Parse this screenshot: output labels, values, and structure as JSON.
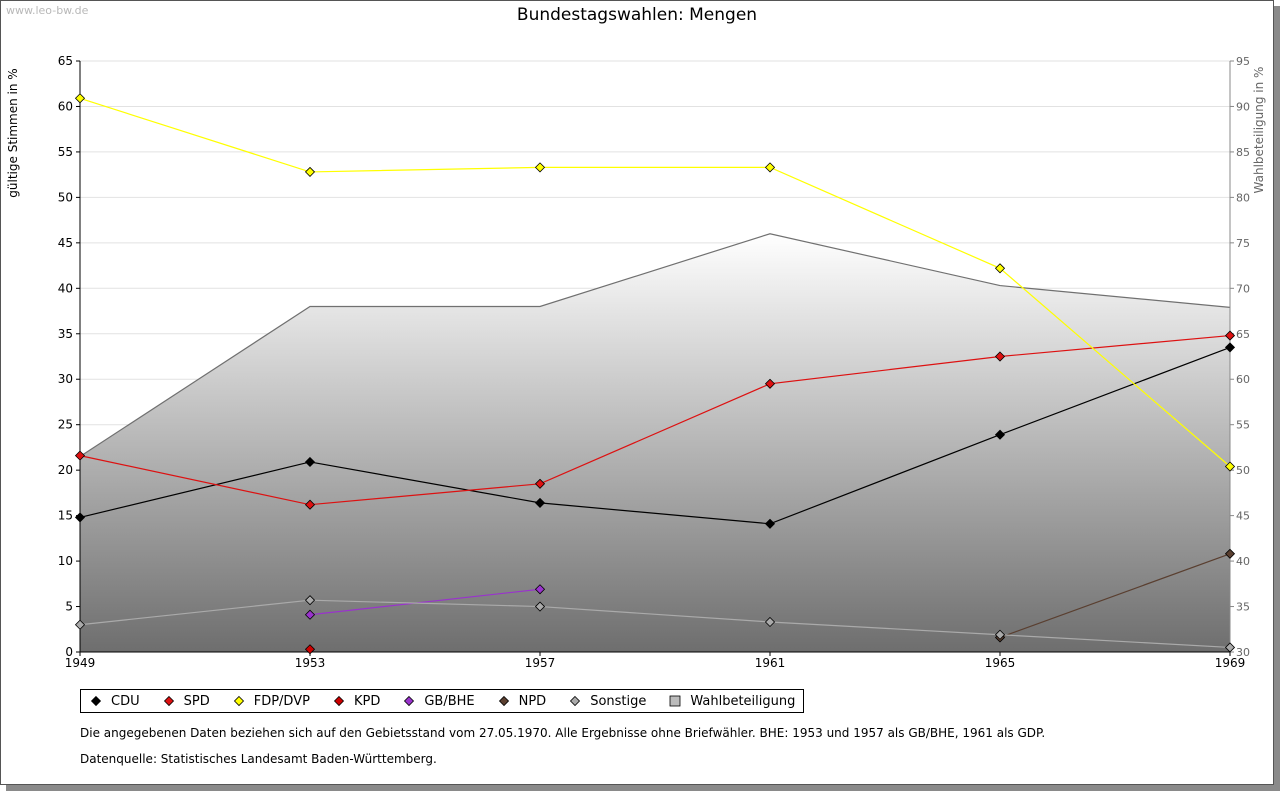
{
  "watermark": "www.leo-bw.de",
  "chart_data": {
    "type": "line",
    "title": "Bundestagswahlen: Mengen",
    "ylabel": "gültige Stimmen in %",
    "ylabel_right": "Wahlbeteiligung in %",
    "xlabel": "",
    "x": [
      1949,
      1953,
      1957,
      1961,
      1965,
      1969
    ],
    "ylim": [
      0,
      65
    ],
    "yticks": [
      0,
      5,
      10,
      15,
      20,
      25,
      30,
      35,
      40,
      45,
      50,
      55,
      60,
      65
    ],
    "ylim_right": [
      30,
      95
    ],
    "yticks_right": [
      30,
      35,
      40,
      45,
      50,
      55,
      60,
      65,
      70,
      75,
      80,
      85,
      90,
      95
    ],
    "grid": true,
    "series": [
      {
        "name": "CDU",
        "color": "#000000",
        "values": [
          14.8,
          20.9,
          16.4,
          14.1,
          23.9,
          33.5
        ]
      },
      {
        "name": "SPD",
        "color": "#dd1111",
        "values": [
          21.6,
          16.2,
          18.5,
          29.5,
          32.5,
          34.8
        ]
      },
      {
        "name": "FDP/DVP",
        "color": "#ffff00",
        "values": [
          60.9,
          52.8,
          53.3,
          53.3,
          42.2,
          20.4
        ]
      },
      {
        "name": "KPD",
        "color": "#cc0000",
        "values": [
          null,
          0.3,
          null,
          null,
          null,
          null
        ]
      },
      {
        "name": "GB/BHE",
        "color": "#9933cc",
        "values": [
          null,
          4.1,
          6.9,
          null,
          null,
          null
        ]
      },
      {
        "name": "NPD",
        "color": "#5a3f30",
        "values": [
          null,
          null,
          null,
          null,
          1.6,
          10.8
        ]
      },
      {
        "name": "Sonstige",
        "color": "#aaaaaa",
        "values": [
          3.0,
          5.7,
          5.0,
          3.3,
          1.9,
          0.5
        ]
      }
    ],
    "area_series": {
      "name": "Wahlbeteiligung",
      "axis": "right",
      "values": [
        51.5,
        68.0,
        68.0,
        76.0,
        70.3,
        67.9
      ]
    },
    "legend": [
      "CDU",
      "SPD",
      "FDP/DVP",
      "KPD",
      "GB/BHE",
      "NPD",
      "Sonstige",
      "Wahlbeteiligung"
    ]
  },
  "legend_colors": {
    "CDU": "#000000",
    "SPD": "#dd1111",
    "FDP/DVP": "#ffff00",
    "KPD": "#cc0000",
    "GB/BHE": "#9933cc",
    "NPD": "#5a3f30",
    "Sonstige": "#aaaaaa",
    "Wahlbeteiligung": "#bbbbbb"
  },
  "notes": {
    "line1": "Die angegebenen Daten beziehen sich auf den Gebietsstand vom 27.05.1970. Alle Ergebnisse ohne Briefwähler. BHE: 1953 und 1957 als GB/BHE, 1961 als GDP.",
    "line2": "Datenquelle: Statistisches Landesamt Baden-Württemberg."
  }
}
